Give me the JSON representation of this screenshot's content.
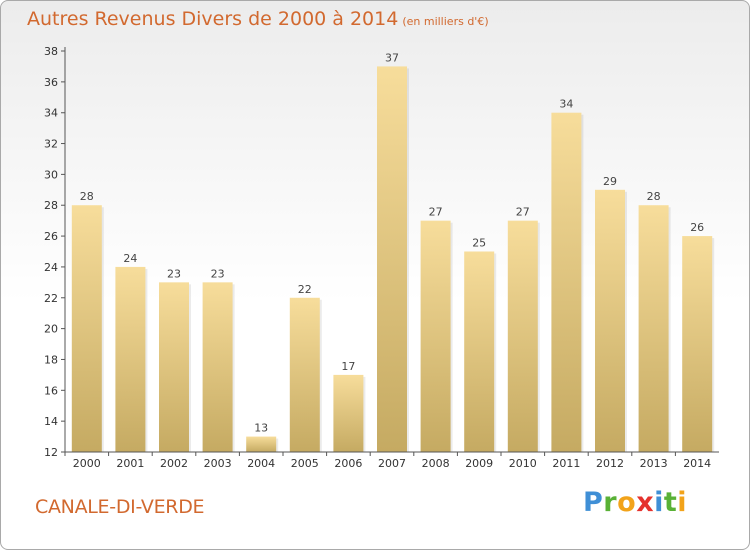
{
  "title": "Autres Revenus Divers de 2000 à 2014",
  "unit": "(en milliers d'€)",
  "location": "CANALE-DI-VERDE",
  "logo": {
    "letters": [
      "P",
      "r",
      "o",
      "x",
      "i",
      "t",
      "i"
    ],
    "colors": [
      "#3f8fd6",
      "#59b136",
      "#f2a31a",
      "#e5322d",
      "#3f8fd6",
      "#59b136",
      "#f2a31a"
    ]
  },
  "colors": {
    "title": "#d2692f",
    "bar_light": "#f7dd9b",
    "bar_dark": "#c5aa62",
    "axis": "#555555"
  },
  "chart_data": {
    "type": "bar",
    "categories": [
      "2000",
      "2001",
      "2002",
      "2003",
      "2004",
      "2005",
      "2006",
      "2007",
      "2008",
      "2009",
      "2010",
      "2011",
      "2012",
      "2013",
      "2014"
    ],
    "values": [
      28,
      24,
      23,
      23,
      13,
      22,
      17,
      37,
      27,
      25,
      27,
      34,
      29,
      28,
      26
    ],
    "ylim": [
      12,
      38
    ],
    "yticks": [
      12,
      14,
      16,
      18,
      20,
      22,
      24,
      26,
      28,
      30,
      32,
      34,
      36,
      38
    ],
    "grid": false
  }
}
